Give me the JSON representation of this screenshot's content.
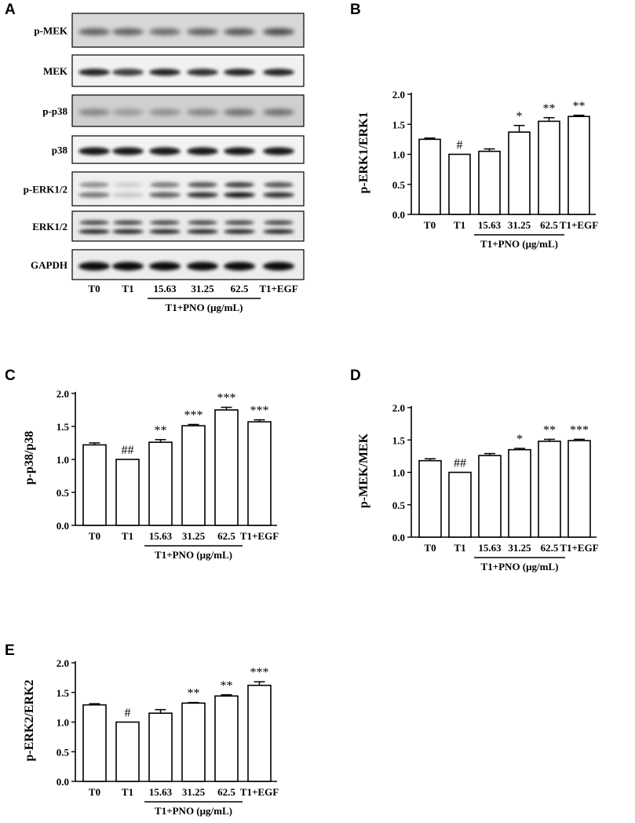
{
  "panels": {
    "A": "A",
    "B": "B",
    "C": "C",
    "D": "D",
    "E": "E"
  },
  "blot": {
    "rows": [
      "p-MEK",
      "MEK",
      "p-p38",
      "p38",
      "p-ERK1/2",
      "ERK1/2",
      "GAPDH"
    ],
    "lanes": [
      "T0",
      "T1",
      "15.63",
      "31.25",
      "62.5",
      "T1+EGF"
    ],
    "group_label": "T1+PNO (μg/mL)"
  },
  "chart_data": [
    {
      "type": "bar",
      "panel": "B",
      "ylabel": "p-ERK1/ERK1",
      "categories": [
        "T0",
        "T1",
        "15.63",
        "31.25",
        "62.5",
        "T1+EGF"
      ],
      "values": [
        1.25,
        1.0,
        1.05,
        1.37,
        1.55,
        1.63
      ],
      "errors": [
        0.02,
        0.0,
        0.04,
        0.11,
        0.06,
        0.02
      ],
      "significance": [
        "",
        "#",
        "",
        "*",
        "**",
        "**"
      ],
      "yticks": [
        "0.0",
        "0.5",
        "1.0",
        "1.5",
        "2.0"
      ],
      "ylim": [
        0,
        2.0
      ],
      "group_label": "T1+PNO (μg/mL)"
    },
    {
      "type": "bar",
      "panel": "C",
      "ylabel": "p-p38/p38",
      "categories": [
        "T0",
        "T1",
        "15.63",
        "31.25",
        "62.5",
        "T1+EGF"
      ],
      "values": [
        1.22,
        1.0,
        1.26,
        1.51,
        1.75,
        1.57
      ],
      "errors": [
        0.03,
        0.0,
        0.04,
        0.02,
        0.04,
        0.03
      ],
      "significance": [
        "",
        "##",
        "**",
        "***",
        "***",
        "***"
      ],
      "yticks": [
        "0.0",
        "0.5",
        "1.0",
        "1.5",
        "2.0"
      ],
      "ylim": [
        0,
        2.0
      ],
      "group_label": "T1+PNO (μg/mL)"
    },
    {
      "type": "bar",
      "panel": "D",
      "ylabel": "p-MEK/MEK",
      "categories": [
        "T0",
        "T1",
        "15.63",
        "31.25",
        "62.5",
        "T1+EGF"
      ],
      "values": [
        1.18,
        1.0,
        1.26,
        1.35,
        1.48,
        1.49
      ],
      "errors": [
        0.03,
        0.0,
        0.03,
        0.02,
        0.03,
        0.02
      ],
      "significance": [
        "",
        "##",
        "",
        "*",
        "**",
        "***"
      ],
      "yticks": [
        "0.0",
        "0.5",
        "1.0",
        "1.5",
        "2.0"
      ],
      "ylim": [
        0,
        2.0
      ],
      "group_label": "T1+PNO (μg/mL)"
    },
    {
      "type": "bar",
      "panel": "E",
      "ylabel": "p-ERK2/ERK2",
      "categories": [
        "T0",
        "T1",
        "15.63",
        "31.25",
        "62.5",
        "T1+EGF"
      ],
      "values": [
        1.29,
        1.0,
        1.15,
        1.32,
        1.44,
        1.62
      ],
      "errors": [
        0.02,
        0.0,
        0.06,
        0.01,
        0.02,
        0.06
      ],
      "significance": [
        "",
        "#",
        "",
        "**",
        "**",
        "***"
      ],
      "yticks": [
        "0.0",
        "0.5",
        "1.0",
        "1.5",
        "2.0"
      ],
      "ylim": [
        0,
        2.0
      ],
      "group_label": "T1+PNO (μg/mL)"
    }
  ]
}
